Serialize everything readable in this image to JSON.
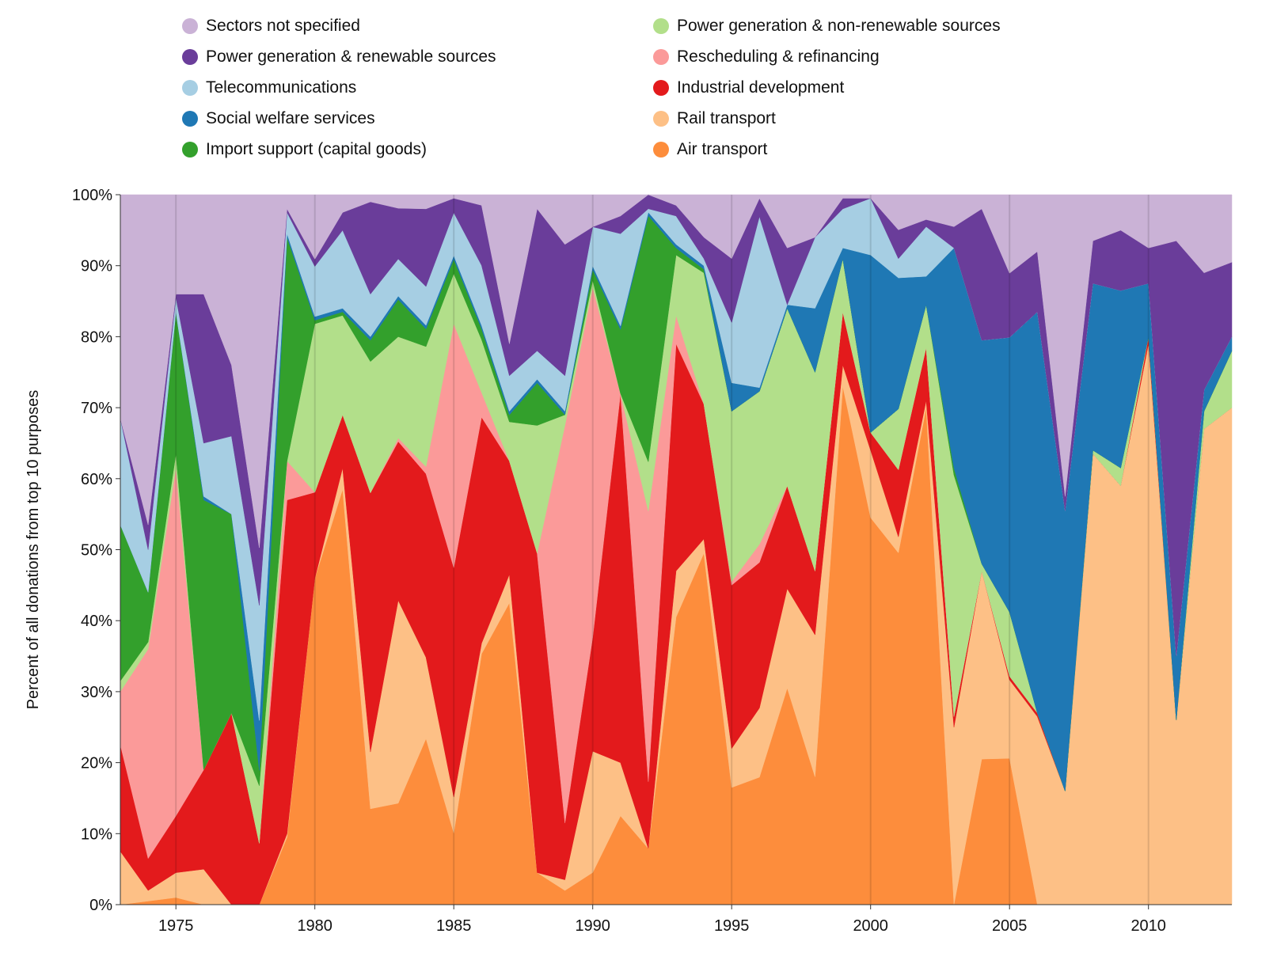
{
  "chart_data": {
    "type": "area",
    "stacked": true,
    "normalized": true,
    "title": "",
    "xlabel": "",
    "ylabel": "Percent of all donations from top 10 purposes",
    "xlim": [
      1973,
      2013
    ],
    "ylim": [
      0,
      100
    ],
    "x_ticks": [
      1975,
      1980,
      1985,
      1990,
      1995,
      2000,
      2005,
      2010
    ],
    "y_ticks": [
      0,
      10,
      20,
      30,
      40,
      50,
      60,
      70,
      80,
      90,
      100
    ],
    "y_tick_labels": [
      "0%",
      "10%",
      "20%",
      "30%",
      "40%",
      "50%",
      "60%",
      "70%",
      "80%",
      "90%",
      "100%"
    ],
    "grid": "vertical",
    "legend_placement": "top",
    "x": [
      1973,
      1974,
      1975,
      1976,
      1977,
      1978,
      1979,
      1980,
      1981,
      1982,
      1983,
      1984,
      1985,
      1986,
      1987,
      1988,
      1989,
      1990,
      1991,
      1992,
      1993,
      1994,
      1995,
      1996,
      1997,
      1998,
      1999,
      2000,
      2001,
      2002,
      2003,
      2004,
      2005,
      2006,
      2007,
      2008,
      2009,
      2010,
      2011,
      2012,
      2013
    ],
    "series": [
      {
        "name": "Air transport",
        "color": "#fd8d3c",
        "values": [
          0,
          0.5,
          1,
          0,
          0,
          0,
          9.5,
          45.5,
          58.5,
          13.5,
          15,
          23.5,
          10,
          35.5,
          42.5,
          4.5,
          2,
          4.5,
          12.5,
          8,
          40.5,
          49.5,
          16.5,
          17.5,
          30.5,
          18,
          73,
          54.5,
          55,
          70,
          0,
          20.5,
          20.5,
          0,
          0,
          0,
          0,
          0,
          0,
          0,
          0
        ]
      },
      {
        "name": "Rail transport",
        "color": "#fdc086",
        "values": [
          7.5,
          1.5,
          3.5,
          5,
          0,
          0,
          0.5,
          0,
          3,
          8,
          30,
          11.5,
          5,
          1.5,
          4,
          0,
          1.5,
          17,
          7.5,
          0,
          6.5,
          2,
          5.5,
          9.5,
          14,
          20,
          3,
          9.5,
          2.5,
          1,
          25,
          26.5,
          11,
          26.5,
          16,
          63.5,
          59,
          79,
          26,
          67,
          70
        ]
      },
      {
        "name": "Industrial development",
        "color": "#e31a1c",
        "values": [
          15,
          4.5,
          8,
          14,
          27,
          8,
          47,
          12,
          7.5,
          36.5,
          23.5,
          26,
          32,
          32,
          16,
          45,
          8,
          16,
          52,
          9.5,
          32,
          19,
          23,
          20,
          14.5,
          9,
          7.5,
          2.5,
          10.5,
          7.5,
          1.5,
          0,
          0.5,
          0.5,
          0,
          0,
          0,
          1,
          0,
          0,
          0
        ]
      },
      {
        "name": "Rescheduling & refinancing",
        "color": "#fb9a99",
        "values": [
          7.5,
          29.5,
          49,
          0,
          0,
          0,
          5.5,
          0,
          0,
          0,
          0.5,
          1,
          34,
          3.5,
          0,
          0,
          56,
          49,
          0,
          38.5,
          4,
          0,
          0.5,
          2.5,
          0,
          0,
          0,
          0,
          0,
          0,
          0,
          0,
          0,
          0,
          0,
          0,
          0,
          0,
          0,
          0,
          0
        ]
      },
      {
        "name": "Power generation & non-renewable sources",
        "color": "#b2df8a",
        "values": [
          1.5,
          1,
          2,
          0,
          0,
          7.5,
          0,
          23.5,
          14,
          18.5,
          15,
          17,
          7,
          7.5,
          5.5,
          18,
          1.5,
          1,
          0,
          7,
          8.5,
          18.5,
          24,
          21,
          25,
          28,
          7.5,
          0,
          9.5,
          6,
          34,
          1,
          9,
          0,
          0,
          0.5,
          2.5,
          0,
          0,
          2.5,
          8
        ]
      },
      {
        "name": "Import support (capital goods)",
        "color": "#33a02c",
        "values": [
          22,
          7,
          20,
          38,
          28,
          2,
          31.5,
          0.5,
          0.5,
          3,
          5.5,
          2.5,
          2,
          1.5,
          1,
          6,
          0,
          1.5,
          9,
          35,
          1,
          0.5,
          0,
          0,
          0,
          0,
          0,
          0,
          0,
          0,
          1,
          0,
          0,
          0,
          0,
          0,
          0,
          0,
          0,
          0,
          0
        ]
      },
      {
        "name": "Social welfare services",
        "color": "#1f78b4",
        "values": [
          0,
          0,
          0,
          0.5,
          0,
          6.5,
          0.5,
          0.5,
          0.5,
          0.5,
          0.5,
          0.5,
          0.5,
          0.5,
          0.5,
          0.5,
          0.5,
          0.5,
          0.5,
          0.5,
          0.5,
          0.5,
          4,
          0.5,
          0.5,
          9,
          1.5,
          25,
          20.5,
          4,
          31,
          31.5,
          38.5,
          56.5,
          39.5,
          23.5,
          25,
          7.5,
          9,
          3,
          2
        ]
      },
      {
        "name": "Telecommunications",
        "color": "#a6cee3",
        "values": [
          15,
          6,
          2,
          7.5,
          11,
          15,
          3,
          7,
          11,
          6,
          5.5,
          5.5,
          6,
          8.5,
          5,
          4,
          5,
          5.5,
          13,
          0.5,
          4,
          1,
          8.5,
          23.5,
          0,
          10,
          5.5,
          8,
          3,
          7,
          0,
          0,
          0,
          0,
          0,
          0,
          0,
          0,
          0,
          0,
          0
        ]
      },
      {
        "name": "Power generation & renewable sources",
        "color": "#6a3d9a",
        "values": [
          0,
          3.5,
          0.5,
          21,
          10,
          7.5,
          0.5,
          1,
          2.5,
          13,
          7.5,
          11,
          2,
          8.5,
          4.5,
          20,
          18.5,
          0,
          2.5,
          2,
          1.5,
          3,
          9,
          2.5,
          8,
          0,
          1.5,
          0,
          4.5,
          1,
          3,
          18.5,
          9,
          8.5,
          2,
          6,
          8.5,
          5,
          58.5,
          16.5,
          10.5
        ]
      },
      {
        "name": "Sectors not specified",
        "color": "#cab2d6",
        "values": [
          31.5,
          46.5,
          14,
          14,
          24,
          46,
          2,
          9,
          2.5,
          1,
          2,
          2,
          0.5,
          1.5,
          21,
          2,
          7,
          4.5,
          3,
          0,
          1.5,
          6,
          9,
          0.5,
          7.5,
          6,
          0.5,
          0.5,
          5.5,
          3.5,
          4.5,
          2,
          11,
          8,
          42.5,
          6.5,
          5,
          7.5,
          6.5,
          11,
          9.5
        ]
      }
    ]
  },
  "legend": {
    "left_column": [
      "Sectors not specified",
      "Power generation & renewable sources",
      "Telecommunications",
      "Social welfare services",
      "Import support (capital goods)"
    ],
    "right_column": [
      "Power generation & non-renewable sources",
      "Rescheduling & refinancing",
      "Industrial development",
      "Rail transport",
      "Air transport"
    ]
  }
}
